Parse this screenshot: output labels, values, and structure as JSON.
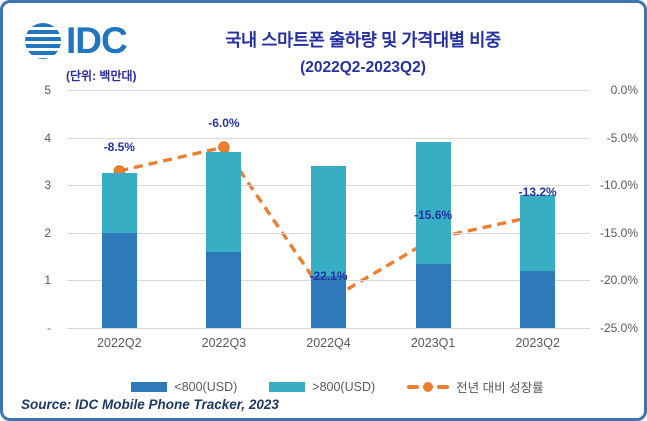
{
  "logo": {
    "text": "IDC"
  },
  "header": {
    "title": "국내 스마트폰 출하량 및 가격대별 비중",
    "subtitle": "(2022Q2-2023Q2)",
    "unit_label": "(단위: 백만대)"
  },
  "chart_data": {
    "type": "bar",
    "subtype": "stacked-bars-with-line",
    "title": "국내 스마트폰 출하량 및 가격대별 비중 (2022Q2-2023Q2)",
    "unit": "백만대 (millions of units)",
    "categories": [
      "2022Q2",
      "2022Q3",
      "2022Q4",
      "2023Q1",
      "2023Q2"
    ],
    "series": [
      {
        "name": "<800(USD)",
        "color": "#2e79b9",
        "values": [
          2.0,
          1.6,
          1.1,
          1.35,
          1.2
        ]
      },
      {
        "name": ">800(USD)",
        "color": "#38aec5",
        "values": [
          1.25,
          2.1,
          2.3,
          2.55,
          1.6
        ]
      }
    ],
    "totals": [
      3.25,
      3.7,
      3.4,
      3.9,
      2.8
    ],
    "line_series": {
      "name": "전년 대비 성장률",
      "color": "#ed7d31",
      "values_pct": [
        -8.5,
        -6.0,
        -22.1,
        -15.6,
        -13.2
      ],
      "labels": [
        "-8.5%",
        "-6.0%",
        "-22.1%",
        "-15.6%",
        "-13.2%"
      ]
    },
    "left_axis": {
      "max": 5,
      "min": 0,
      "tick_labels": [
        "5",
        "4",
        "3",
        "2",
        "1",
        "-"
      ],
      "tick_values": [
        5,
        4,
        3,
        2,
        1,
        0
      ]
    },
    "right_axis": {
      "max": 0,
      "min": -25,
      "tick_labels": [
        "0.0%",
        "-5.0%",
        "-10.0%",
        "-15.0%",
        "-20.0%",
        "-25.0%"
      ],
      "tick_values": [
        0,
        -5,
        -10,
        -15,
        -20,
        -25
      ]
    },
    "grid": true,
    "legend_position": "bottom"
  },
  "legend": {
    "items": [
      {
        "label": "<800(USD)",
        "type": "bar",
        "color": "#2e79b9"
      },
      {
        "label": ">800(USD)",
        "type": "bar",
        "color": "#38aec5"
      },
      {
        "label": "전년 대비 성장률",
        "type": "line",
        "color": "#ed7d31"
      }
    ]
  },
  "source": {
    "text": "Source: IDC Mobile Phone Tracker, 2023"
  },
  "colors": {
    "bar_low": "#2e79b9",
    "bar_high": "#38aec5",
    "line": "#ed7d31",
    "title_text": "#2630a0",
    "data_label_text": "#2433a2",
    "axis_text": "#595959",
    "gridline": "#d9d9d9",
    "frame_border": "#3b76b2",
    "logo": "#2176bd",
    "source_text": "#1f3864"
  }
}
